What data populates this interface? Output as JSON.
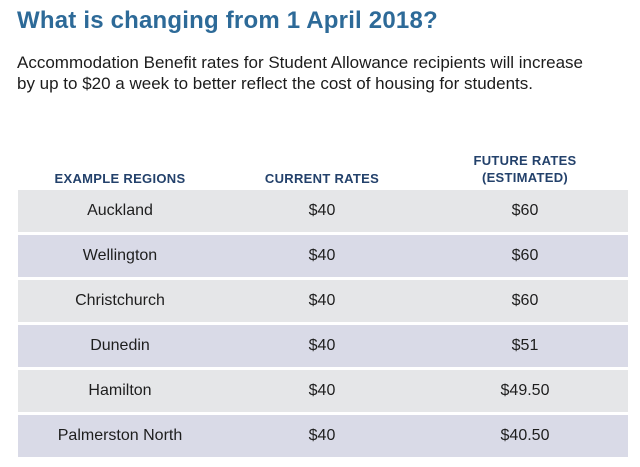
{
  "heading": "What is changing from 1 April 2018?",
  "intro": "Accommodation Benefit rates for Student Allowance recipients will increase by up to $20 a week to better reflect the cost of housing for students.",
  "colors": {
    "heading": "#2d6a98",
    "column_header": "#23416b",
    "row_light": "#e5e6e8",
    "row_tinted": "#d9dae7"
  },
  "table": {
    "headers": {
      "regions": "EXAMPLE REGIONS",
      "current": "CURRENT RATES",
      "future_line1": "FUTURE RATES",
      "future_line2": "(ESTIMATED)"
    },
    "rows": [
      {
        "region": "Auckland",
        "current": "$40",
        "future": "$60"
      },
      {
        "region": "Wellington",
        "current": "$40",
        "future": "$60"
      },
      {
        "region": "Christchurch",
        "current": "$40",
        "future": "$60"
      },
      {
        "region": "Dunedin",
        "current": "$40",
        "future": "$51"
      },
      {
        "region": "Hamilton",
        "current": "$40",
        "future": "$49.50"
      },
      {
        "region": "Palmerston North",
        "current": "$40",
        "future": "$40.50"
      }
    ]
  }
}
